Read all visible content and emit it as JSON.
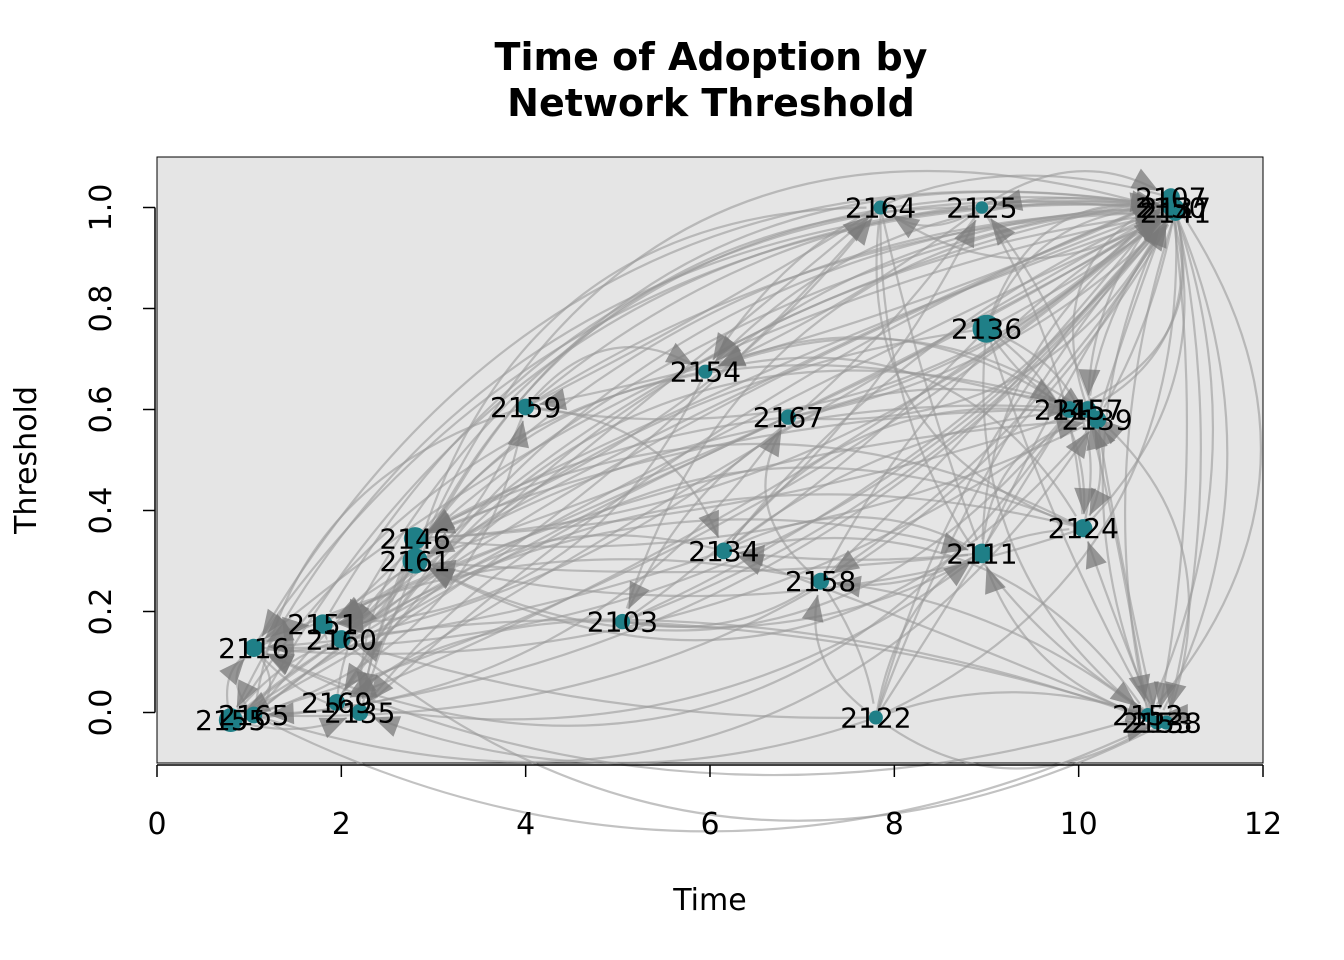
{
  "chart_data": {
    "type": "scatter",
    "title_lines": [
      "Time of Adoption by",
      "Network Threshold"
    ],
    "xlabel": "Time",
    "ylabel": "Threshold",
    "xlim": [
      0,
      12
    ],
    "ylim": [
      -0.1,
      1.1
    ],
    "xticks": [
      0,
      2,
      4,
      6,
      8,
      10,
      12
    ],
    "yticks": [
      0.0,
      0.2,
      0.4,
      0.6,
      0.8,
      1.0
    ],
    "xtick_labels": [
      "0",
      "2",
      "4",
      "6",
      "8",
      "10",
      "12"
    ],
    "ytick_labels": [
      "0.0",
      "0.2",
      "0.4",
      "0.6",
      "0.8",
      "1.0"
    ],
    "background": "#e5e5e5",
    "node_color": "#1f7f87",
    "edge_color": "#9a9a9a",
    "nodes": [
      {
        "id": "2164",
        "x": 7.85,
        "y": 1.0,
        "size": 1.0
      },
      {
        "id": "2125",
        "x": 8.95,
        "y": 1.0,
        "size": 0.9
      },
      {
        "id": "2136",
        "x": 9.0,
        "y": 0.76,
        "size": 2.0
      },
      {
        "id": "2154",
        "x": 5.95,
        "y": 0.675,
        "size": 1.0
      },
      {
        "id": "2159",
        "x": 4.0,
        "y": 0.605,
        "size": 1.2
      },
      {
        "id": "2167",
        "x": 6.85,
        "y": 0.585,
        "size": 1.1
      },
      {
        "id": "2145",
        "x": 9.9,
        "y": 0.6,
        "size": 1.2
      },
      {
        "id": "2157",
        "x": 10.1,
        "y": 0.6,
        "size": 1.2
      },
      {
        "id": "2139",
        "x": 10.2,
        "y": 0.58,
        "size": 1.3
      },
      {
        "id": "2124",
        "x": 10.05,
        "y": 0.365,
        "size": 1.3
      },
      {
        "id": "2146",
        "x": 2.8,
        "y": 0.345,
        "size": 1.6
      },
      {
        "id": "2161",
        "x": 2.8,
        "y": 0.3,
        "size": 1.8
      },
      {
        "id": "2134",
        "x": 6.15,
        "y": 0.32,
        "size": 1.2
      },
      {
        "id": "2111",
        "x": 8.95,
        "y": 0.315,
        "size": 1.4
      },
      {
        "id": "2158",
        "x": 7.2,
        "y": 0.26,
        "size": 1.2
      },
      {
        "id": "2103",
        "x": 5.05,
        "y": 0.18,
        "size": 1.1
      },
      {
        "id": "2151",
        "x": 1.8,
        "y": 0.175,
        "size": 1.4
      },
      {
        "id": "2160",
        "x": 2.0,
        "y": 0.145,
        "size": 1.3
      },
      {
        "id": "2116",
        "x": 1.05,
        "y": 0.128,
        "size": 1.3
      },
      {
        "id": "2169",
        "x": 1.95,
        "y": 0.02,
        "size": 1.2
      },
      {
        "id": "2135",
        "x": 2.2,
        "y": 0.0,
        "size": 1.2
      },
      {
        "id": "2165",
        "x": 1.05,
        "y": -0.005,
        "size": 1.2
      },
      {
        "id": "2155",
        "x": 0.8,
        "y": -0.015,
        "size": 1.7
      },
      {
        "id": "2122",
        "x": 7.8,
        "y": -0.01,
        "size": 1.0
      },
      {
        "id": "2152",
        "x": 10.75,
        "y": -0.005,
        "size": 1.0
      },
      {
        "id": "2153",
        "x": 10.85,
        "y": -0.02,
        "size": 1.0
      },
      {
        "id": "2138",
        "x": 10.95,
        "y": -0.02,
        "size": 1.0
      },
      {
        "id": "2107",
        "x": 11.0,
        "y": 1.02,
        "size": 1.3
      },
      {
        "id": "2137",
        "x": 11.05,
        "y": 1.0,
        "size": 1.2
      },
      {
        "id": "2141",
        "x": 11.05,
        "y": 0.99,
        "size": 1.2
      },
      {
        "id": "2150",
        "x": 11.0,
        "y": 1.0,
        "size": 1.2
      }
    ]
  }
}
